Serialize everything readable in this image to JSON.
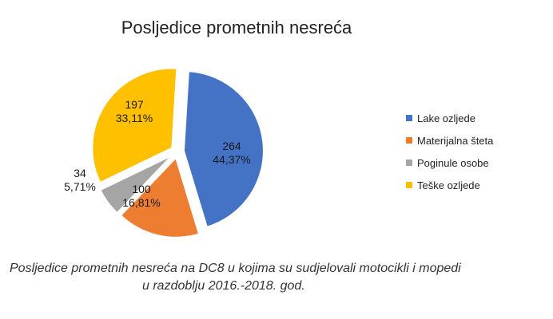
{
  "chart_data": {
    "type": "pie",
    "title": "Posljedice prometnih nesreća",
    "categories": [
      "Lake ozljede",
      "Materijalna šteta",
      "Poginule osobe",
      "Teške ozljede"
    ],
    "values": [
      264,
      100,
      34,
      197
    ],
    "value_labels": [
      "264",
      "100",
      "34",
      "197"
    ],
    "percent_labels": [
      "44,37%",
      "16,81%",
      "5,71%",
      "33,11%"
    ],
    "colors": [
      "#4472C4",
      "#ED7D31",
      "#A5A5A5",
      "#FFC000"
    ],
    "legend_position": "right",
    "exploded": true
  },
  "caption": {
    "line1": "Posljedice prometnih nesreća na DC8 u kojima su sudjelovali motocikli i mopedi",
    "line2": "u razdoblju 2016.-2018. god."
  }
}
